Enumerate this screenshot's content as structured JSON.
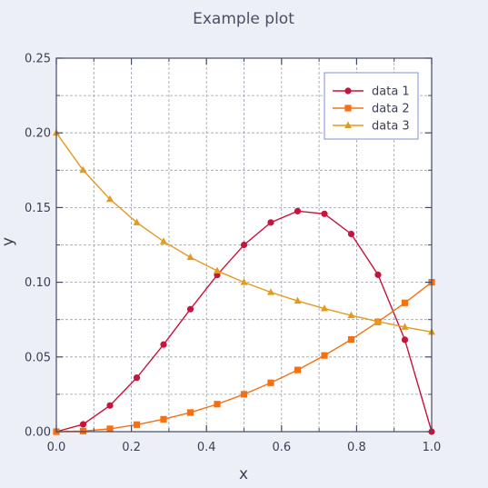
{
  "chart_data": {
    "type": "line",
    "title": "Example plot",
    "xlabel": "x",
    "ylabel": "y",
    "xlim": [
      0.0,
      1.0
    ],
    "ylim": [
      0.0,
      0.25
    ],
    "x_ticks": [
      "0.0",
      "0.2",
      "0.4",
      "0.6",
      "0.8",
      "1.0"
    ],
    "y_ticks": [
      "0.00",
      "0.05",
      "0.10",
      "0.15",
      "0.20",
      "0.25"
    ],
    "grid": true,
    "legend_position": "top-right",
    "x": [
      0.0,
      0.0714,
      0.1429,
      0.2143,
      0.2857,
      0.3571,
      0.4286,
      0.5,
      0.5714,
      0.6429,
      0.7143,
      0.7857,
      0.8571,
      0.9286,
      1.0
    ],
    "series": [
      {
        "name": "data 1",
        "color": "#c8143c",
        "marker": "circle",
        "values": [
          0.0,
          0.0049,
          0.0175,
          0.0361,
          0.0583,
          0.082,
          0.1049,
          0.125,
          0.14,
          0.1476,
          0.1458,
          0.1323,
          0.105,
          0.0615,
          0.0
        ]
      },
      {
        "name": "data 2",
        "color": "#f57012",
        "marker": "square",
        "values": [
          0.0,
          0.0004,
          0.0019,
          0.0047,
          0.0083,
          0.0128,
          0.0184,
          0.025,
          0.0327,
          0.0413,
          0.051,
          0.0617,
          0.0735,
          0.0862,
          0.1
        ]
      },
      {
        "name": "data 3",
        "color": "#e39a1f",
        "marker": "triangle",
        "values": [
          0.2,
          0.175,
          0.1556,
          0.14,
          0.1273,
          0.1167,
          0.1077,
          0.1,
          0.0933,
          0.0875,
          0.0824,
          0.0778,
          0.0737,
          0.07,
          0.0667
        ]
      }
    ]
  }
}
